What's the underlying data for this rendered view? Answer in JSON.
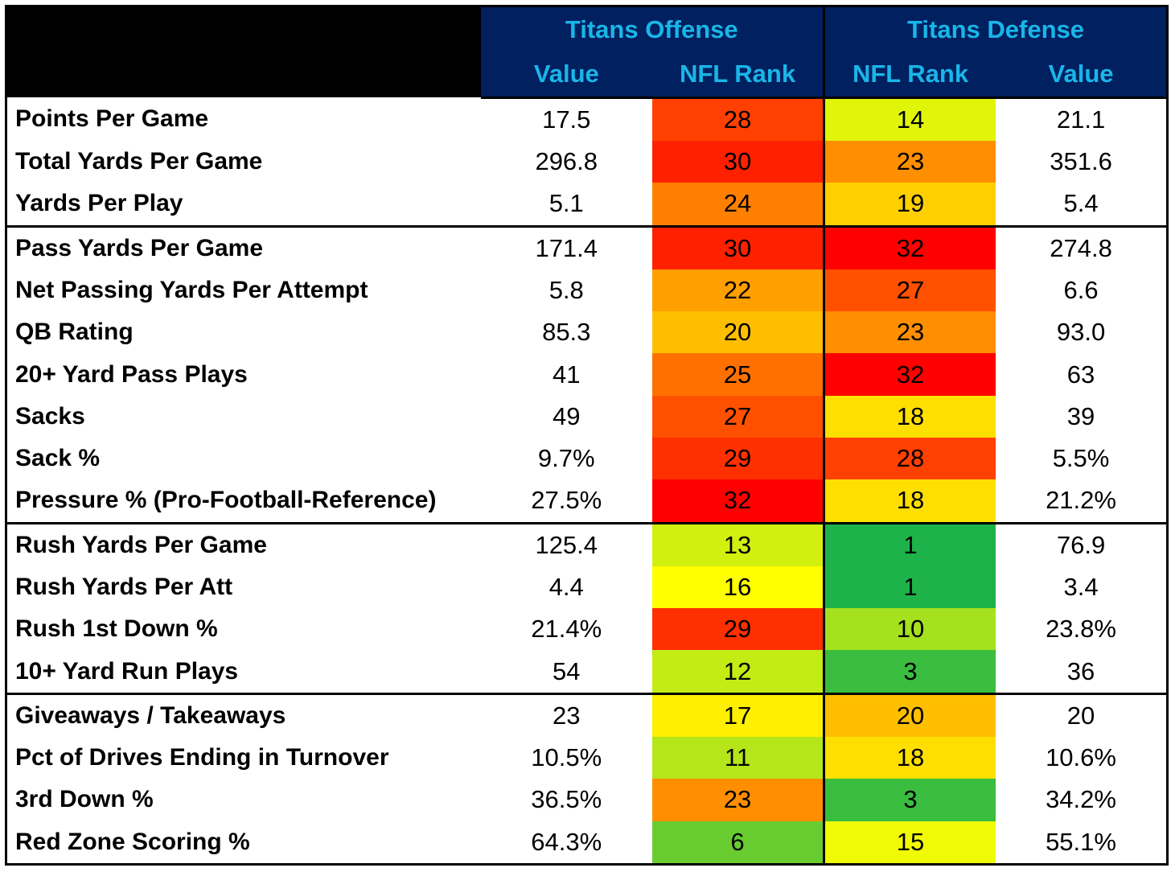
{
  "header": {
    "offense_title": "Titans Offense",
    "defense_title": "Titans Defense",
    "off_value": "Value",
    "off_rank": "NFL Rank",
    "def_rank": "NFL Rank",
    "def_value": "Value"
  },
  "colors": {
    "header_bg": "#002060",
    "header_text": "#19b6e8",
    "rank_scale": "1 = green, 16 = yellow, 32 = red"
  },
  "rows": [
    {
      "label": "Points Per Game",
      "off_value": "17.5",
      "off_rank": "28",
      "def_rank": "14",
      "def_value": "21.1"
    },
    {
      "label": "Total Yards Per Game",
      "off_value": "296.8",
      "off_rank": "30",
      "def_rank": "23",
      "def_value": "351.6"
    },
    {
      "label": "Yards Per Play",
      "off_value": "5.1",
      "off_rank": "24",
      "def_rank": "19",
      "def_value": "5.4"
    },
    {
      "label": "Pass Yards Per Game",
      "off_value": "171.4",
      "off_rank": "30",
      "def_rank": "32",
      "def_value": "274.8"
    },
    {
      "label": "Net Passing Yards Per Attempt",
      "off_value": "5.8",
      "off_rank": "22",
      "def_rank": "27",
      "def_value": "6.6"
    },
    {
      "label": "QB Rating",
      "off_value": "85.3",
      "off_rank": "20",
      "def_rank": "23",
      "def_value": "93.0"
    },
    {
      "label": "20+ Yard Pass Plays",
      "off_value": "41",
      "off_rank": "25",
      "def_rank": "32",
      "def_value": "63"
    },
    {
      "label": "Sacks",
      "off_value": "49",
      "off_rank": "27",
      "def_rank": "18",
      "def_value": "39"
    },
    {
      "label": "Sack %",
      "off_value": "9.7%",
      "off_rank": "29",
      "def_rank": "28",
      "def_value": "5.5%"
    },
    {
      "label": "Pressure % (Pro-Football-Reference)",
      "off_value": "27.5%",
      "off_rank": "32",
      "def_rank": "18",
      "def_value": "21.2%"
    },
    {
      "label": "Rush Yards Per Game",
      "off_value": "125.4",
      "off_rank": "13",
      "def_rank": "1",
      "def_value": "76.9"
    },
    {
      "label": "Rush Yards Per Att",
      "off_value": "4.4",
      "off_rank": "16",
      "def_rank": "1",
      "def_value": "3.4"
    },
    {
      "label": "Rush 1st Down %",
      "off_value": "21.4%",
      "off_rank": "29",
      "def_rank": "10",
      "def_value": "23.8%"
    },
    {
      "label": "10+ Yard Run Plays",
      "off_value": "54",
      "off_rank": "12",
      "def_rank": "3",
      "def_value": "36"
    },
    {
      "label": "Giveaways / Takeaways",
      "off_value": "23",
      "off_rank": "17",
      "def_rank": "20",
      "def_value": "20"
    },
    {
      "label": "Pct of Drives Ending in Turnover",
      "off_value": "10.5%",
      "off_rank": "11",
      "def_rank": "18",
      "def_value": "10.6%"
    },
    {
      "label": "3rd Down %",
      "off_value": "36.5%",
      "off_rank": "23",
      "def_rank": "3",
      "def_value": "34.2%"
    },
    {
      "label": "Red Zone Scoring %",
      "off_value": "64.3%",
      "off_rank": "6",
      "def_rank": "15",
      "def_value": "55.1%"
    }
  ]
}
